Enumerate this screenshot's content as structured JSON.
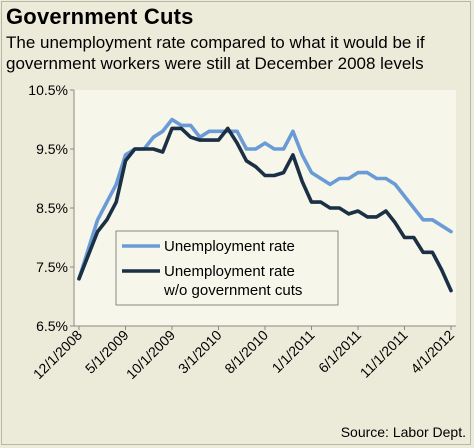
{
  "chart_data": {
    "type": "line",
    "title": "Government Cuts",
    "subtitle": "The unemployment rate compared to what it would be if government workers were still at December 2008 levels",
    "source": "Source: Labor Dept.",
    "xlabel": "",
    "ylabel": "",
    "ylim": [
      6.5,
      10.5
    ],
    "y_ticks": [
      "6.5%",
      "7.5%",
      "8.5%",
      "9.5%",
      "10.5%"
    ],
    "x_ticks": [
      "12/1/2008",
      "5/1/2009",
      "10/1/2009",
      "3/1/2010",
      "8/1/2010",
      "1/1/2011",
      "6/1/2011",
      "11/1/2011",
      "4/1/2012"
    ],
    "grid": false,
    "legend_position": "left-middle",
    "series": [
      {
        "name": "Unemployment rate",
        "color": "#6a9bd6",
        "values": [
          7.3,
          7.8,
          8.3,
          8.6,
          8.9,
          9.4,
          9.5,
          9.5,
          9.7,
          9.8,
          10.0,
          9.9,
          9.9,
          9.7,
          9.8,
          9.8,
          9.8,
          9.8,
          9.5,
          9.5,
          9.6,
          9.5,
          9.5,
          9.8,
          9.4,
          9.1,
          9.0,
          8.9,
          9.0,
          9.0,
          9.1,
          9.1,
          9.0,
          9.0,
          8.9,
          8.7,
          8.5,
          8.3,
          8.3,
          8.2,
          8.1
        ]
      },
      {
        "name": "Unemployment rate w/o government cuts",
        "color": "#1b2f45",
        "values": [
          7.3,
          7.7,
          8.1,
          8.3,
          8.6,
          9.3,
          9.5,
          9.5,
          9.5,
          9.45,
          9.85,
          9.85,
          9.7,
          9.65,
          9.65,
          9.65,
          9.85,
          9.6,
          9.3,
          9.2,
          9.05,
          9.05,
          9.1,
          9.4,
          8.95,
          8.6,
          8.6,
          8.5,
          8.5,
          8.4,
          8.45,
          8.35,
          8.35,
          8.45,
          8.25,
          8.0,
          8.0,
          7.75,
          7.75,
          7.45,
          7.1
        ]
      }
    ]
  }
}
